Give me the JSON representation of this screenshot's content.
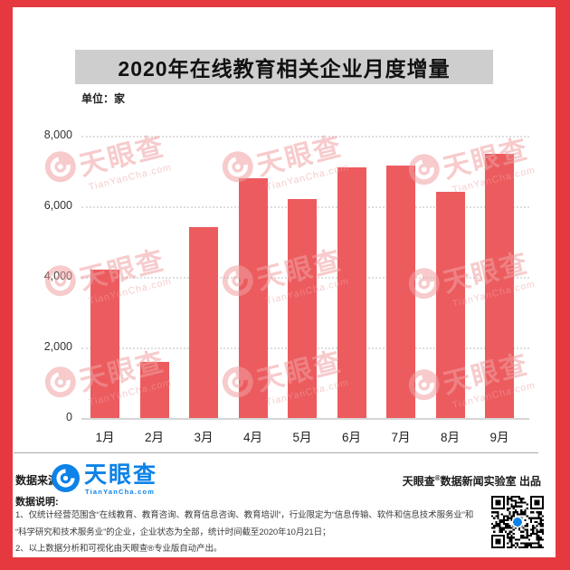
{
  "frame_color": "#e6393f",
  "titlebar_color": "#cecece",
  "brand_color": "#0d82e8",
  "watermark_color": "rgba(240,160,162,0.55)",
  "chart_data": {
    "type": "bar",
    "title": "2020年在线教育相关企业月度增量",
    "unit": "单位：家",
    "categories": [
      "1月",
      "2月",
      "3月",
      "4月",
      "5月",
      "6月",
      "7月",
      "8月",
      "9月"
    ],
    "values": [
      4200,
      1600,
      5400,
      6800,
      6200,
      7100,
      7150,
      6400,
      7500
    ],
    "xlabel": "",
    "ylabel": "单位：家",
    "ylim": [
      0,
      8000
    ],
    "yticks": [
      0,
      2000,
      4000,
      6000,
      8000
    ],
    "ytick_labels": [
      "0",
      "2,000",
      "4,000",
      "6,000",
      "8,000"
    ],
    "bar_color": "#ec5b5e",
    "grid": "horizontal-dotted",
    "legend": "none"
  },
  "watermark": {
    "brand": "天眼查",
    "domain": "TianYanCha.com"
  },
  "footer": {
    "source_label": "数据来源:",
    "logo_brand": "天眼查",
    "logo_domain": "TianYanCha.com",
    "credit_brand": "天眼查",
    "credit_reg": "®",
    "credit_rest": "数据新闻实验室 出品",
    "notes_label": "数据说明:",
    "note1": "1、仅统计经营范围含“在线教育、教育咨询、教育信息咨询、教育培训”，行业限定为“信息传输、软件和信息技术服务业”和",
    "note2": "“科学研究和技术服务业”的企业，企业状态为全部，统计时间截至2020年10月21日；",
    "note3": "2、以上数据分析和可视化由天眼查®专业版自动产出。"
  }
}
